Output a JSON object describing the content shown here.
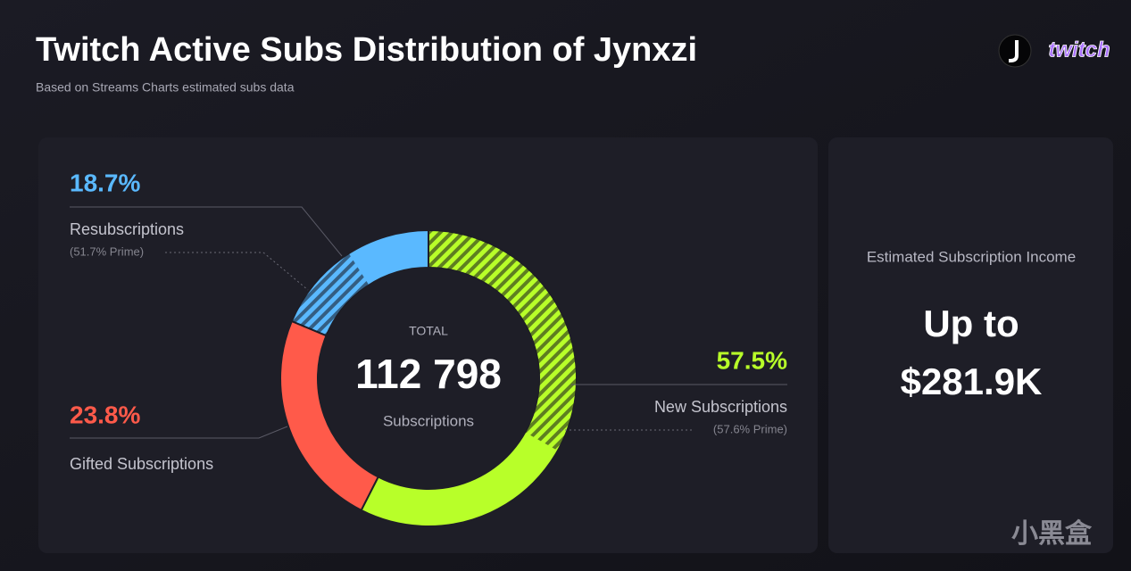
{
  "chart_data": {
    "type": "donut",
    "title": "Twitch Active Subs Distribution of Jynxzi",
    "subtitle": "Based on Streams Charts estimated subs data",
    "brand": "twitch",
    "categories": [
      "New Subscriptions",
      "Gifted Subscriptions",
      "Resubscriptions"
    ],
    "values": [
      57.5,
      23.8,
      18.7
    ],
    "value_labels": [
      "57.5%",
      "23.8%",
      "18.7%"
    ],
    "colors": [
      "#b8ff29",
      "#ff5a4a",
      "#5ab9ff"
    ],
    "prime": [
      57.6,
      null,
      51.7
    ],
    "prime_labels": [
      "(57.6% Prime)",
      null,
      "(51.7% Prime)"
    ],
    "center_label": "TOTAL",
    "total": 112798,
    "total_label": "112 798",
    "center_sublabel": "Subscriptions",
    "income_title": "Estimated Subscription Income",
    "income_label": [
      "Up to",
      "$281.9K"
    ],
    "watermark": "小黑盒"
  }
}
